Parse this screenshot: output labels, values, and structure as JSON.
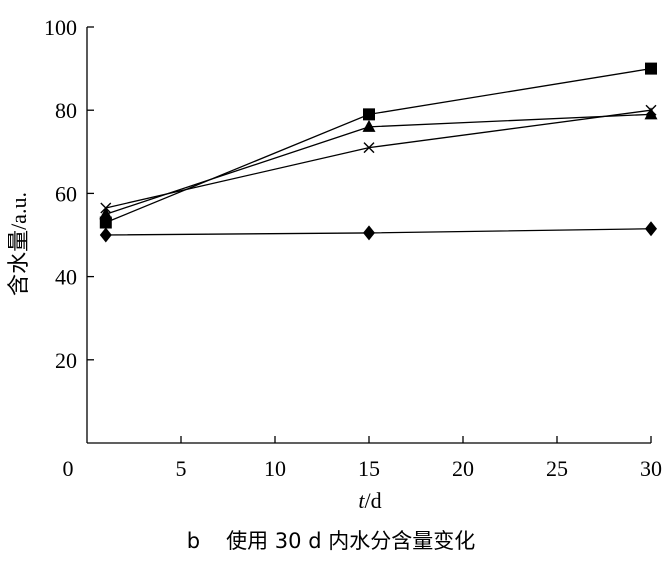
{
  "chart_data": {
    "type": "line",
    "xlabel_italic": "t",
    "xlabel_unit": "/d",
    "ylabel": "含水量/a.u.",
    "caption_letter": "b",
    "caption_text": "使用 30 d 内水分含量变化",
    "xlim": [
      0,
      30
    ],
    "ylim": [
      0,
      100
    ],
    "xticks": [
      0,
      5,
      10,
      15,
      20,
      25,
      30
    ],
    "yticks": [
      20,
      40,
      60,
      80,
      100
    ],
    "grid": false,
    "legend": "none",
    "x": [
      1,
      15,
      30
    ],
    "series": [
      {
        "marker": "square",
        "values": [
          53,
          79,
          90
        ]
      },
      {
        "marker": "triangle",
        "values": [
          55,
          76,
          79
        ]
      },
      {
        "marker": "cross",
        "values": [
          56.5,
          71,
          80
        ]
      },
      {
        "marker": "diamond",
        "values": [
          50,
          50.5,
          51.5
        ]
      }
    ]
  }
}
